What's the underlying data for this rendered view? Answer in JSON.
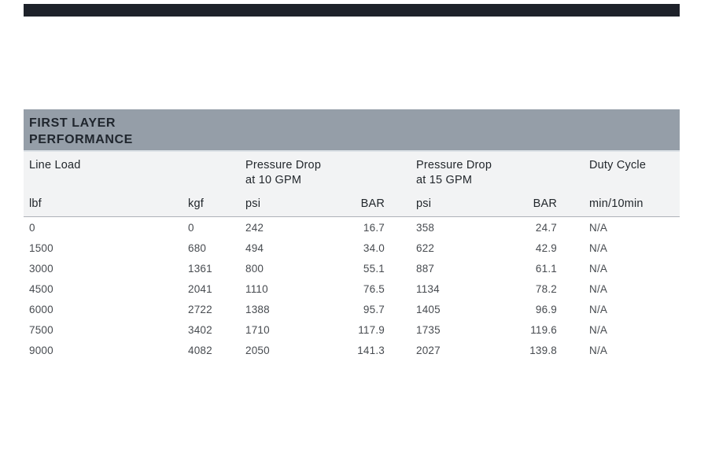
{
  "accent": {
    "top_bar": "#1e222a"
  },
  "table": {
    "title_lines": [
      "FIRST LAYER",
      "PERFORMANCE"
    ],
    "groups": [
      {
        "line1": "Line Load",
        "line2": ""
      },
      {
        "line1": "Pressure Drop",
        "line2": "at 10 GPM"
      },
      {
        "line1": "Pressure Drop",
        "line2": "at 15 GPM"
      },
      {
        "line1": "Duty Cycle",
        "line2": ""
      }
    ],
    "units": [
      "lbf",
      "kgf",
      "psi",
      "BAR",
      "psi",
      "BAR",
      "min/10min"
    ],
    "rows": [
      [
        "0",
        "0",
        "242",
        "16.7",
        "358",
        "24.7",
        "N/A"
      ],
      [
        "1500",
        "680",
        "494",
        "34.0",
        "622",
        "42.9",
        "N/A"
      ],
      [
        "3000",
        "1361",
        "800",
        "55.1",
        "887",
        "61.1",
        "N/A"
      ],
      [
        "4500",
        "2041",
        "1110",
        "76.5",
        "1134",
        "78.2",
        "N/A"
      ],
      [
        "6000",
        "2722",
        "1388",
        "95.7",
        "1405",
        "96.9",
        "N/A"
      ],
      [
        "7500",
        "3402",
        "1710",
        "117.9",
        "1735",
        "119.6",
        "N/A"
      ],
      [
        "9000",
        "4082",
        "2050",
        "141.3",
        "2027",
        "139.8",
        "N/A"
      ]
    ],
    "colors": {
      "top_bar": "#1e222a",
      "title_bg": "#959ea8",
      "title_text": "#20262e",
      "header_bg": "#f2f3f4",
      "header_text": "#22272c",
      "body_text": "#474b50",
      "divider": "#aeb2b8"
    }
  }
}
